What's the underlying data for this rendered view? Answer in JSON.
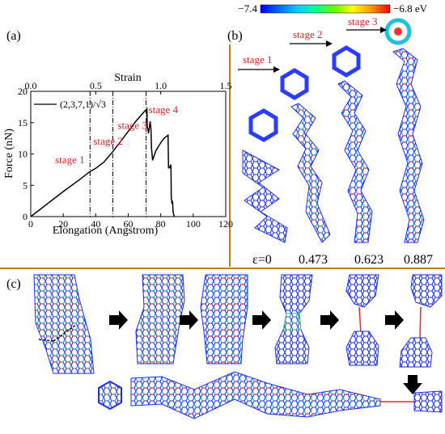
{
  "panels": {
    "a": "(a)",
    "b": "(b)",
    "c": "(c)"
  },
  "colorbar": {
    "min_label": "−7.4",
    "max_label": "−6.8 eV",
    "colors": [
      "#0000ff",
      "#0066ff",
      "#00ccff",
      "#00ff99",
      "#66ff00",
      "#ffff00",
      "#ff9900",
      "#ff0000"
    ]
  },
  "panel_b": {
    "stages": [
      "stage 1",
      "stage 2",
      "stage 3"
    ],
    "strain_labels": [
      "ε=0",
      "0.473",
      "0.623",
      "0.887"
    ]
  },
  "chart_data": {
    "type": "line",
    "title": "",
    "xlabel": "Elongation (Angstrom)",
    "ylabel": "Force (nN)",
    "top_xlabel": "Strain",
    "xlim": [
      0,
      120
    ],
    "ylim": [
      0,
      20
    ],
    "top_xlim": [
      0,
      1.5
    ],
    "x_ticks": [
      0,
      20,
      40,
      60,
      80,
      100,
      120
    ],
    "y_ticks": [
      0,
      5,
      10,
      15,
      20
    ],
    "top_ticks": [
      0.0,
      0.5,
      1.0,
      1.5
    ],
    "series": [
      {
        "name": "(2,3,7,1)/√3",
        "color": "#000000",
        "x": [
          0,
          10,
          20,
          30,
          36.5,
          40,
          45,
          50,
          55,
          60,
          65,
          70,
          71.5,
          71.7,
          72.5,
          73.5,
          74,
          74.3,
          75,
          77,
          80,
          82,
          84.5,
          84.8,
          85.5,
          86,
          86.3,
          86.5,
          87,
          87.3,
          87.6,
          88,
          88.5
        ],
        "y": [
          0,
          2,
          4,
          5.9,
          7.2,
          7.7,
          8.7,
          10.2,
          11.9,
          13.6,
          15.3,
          16.8,
          17.2,
          14.5,
          13.3,
          15.2,
          14.0,
          11.0,
          9.0,
          10.5,
          11.8,
          12.5,
          13.0,
          7.8,
          7.8,
          8.2,
          8.2,
          3.0,
          2.0,
          2.5,
          0.8,
          0.3,
          0
        ]
      }
    ],
    "vlines": [
      36.5,
      50.5,
      71.0
    ],
    "annotations": [
      {
        "text": "stage 1",
        "x": 15,
        "y": 8.5
      },
      {
        "text": "stage 2",
        "x": 38.5,
        "y": 11.5
      },
      {
        "text": "stage 3",
        "x": 53.5,
        "y": 14.0
      },
      {
        "text": "stage 4",
        "x": 72.5,
        "y": 16.5
      }
    ],
    "legend_position": "top-left",
    "grid": false
  }
}
